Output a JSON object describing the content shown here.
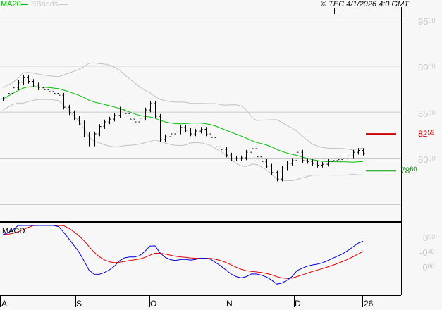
{
  "legend": {
    "ma_label": "MA20",
    "bbands_label": "BBands",
    "ma_color": "#00c000",
    "bb_color": "#c0c0c0"
  },
  "copyright": "© TEC 4/1/2026 4:0 GMT",
  "macd_label": "MACD",
  "resistance": {
    "int": "82",
    "dec": "59",
    "color": "#cc0000"
  },
  "support": {
    "int": "78",
    "dec": "60",
    "color": "#009900"
  },
  "price_axis": [
    {
      "int": "95",
      "dec": "00",
      "v": 95
    },
    {
      "int": "90",
      "dec": "00",
      "v": 90
    },
    {
      "int": "85",
      "dec": "00",
      "v": 85
    },
    {
      "int": "80",
      "dec": "00",
      "v": 80
    }
  ],
  "macd_axis": [
    {
      "int": "0",
      "dec": "00",
      "v": 0
    },
    {
      "int": "-0",
      "dec": "40",
      "v": -0.4
    },
    {
      "int": "-0",
      "dec": "80",
      "v": -0.8
    }
  ],
  "x_labels": [
    "A",
    "S",
    "O",
    "N",
    "D",
    "26"
  ],
  "chart_data": {
    "type": "bar",
    "title": "",
    "ylim": [
      75.5,
      96.5
    ],
    "closes": [
      86.4,
      87.0,
      87.6,
      88.2,
      88.7,
      88.3,
      87.9,
      87.6,
      87.4,
      87.2,
      87.0,
      86.8,
      85.5,
      84.9,
      84.3,
      83.8,
      82.5,
      81.5,
      82.6,
      83.4,
      83.9,
      84.2,
      84.6,
      85.3,
      84.8,
      84.2,
      83.9,
      84.3,
      85.2,
      85.9,
      84.5,
      82.0,
      82.3,
      82.6,
      82.8,
      83.3,
      83.0,
      82.6,
      82.9,
      83.1,
      82.6,
      82.2,
      81.2,
      80.9,
      80.3,
      79.9,
      79.9,
      80.0,
      80.6,
      81.0,
      80.1,
      79.6,
      79.1,
      78.4,
      77.7,
      78.9,
      79.4,
      79.7,
      80.6,
      79.7,
      79.6,
      79.4,
      79.2,
      79.3,
      79.6,
      79.7,
      79.8,
      79.9,
      80.2,
      80.6,
      80.8,
      80.5
    ],
    "indicators": [
      "MA20",
      "BBands(20,2)",
      "MACD(12,26,9)"
    ],
    "resistance": 82.59,
    "support": 78.6
  }
}
